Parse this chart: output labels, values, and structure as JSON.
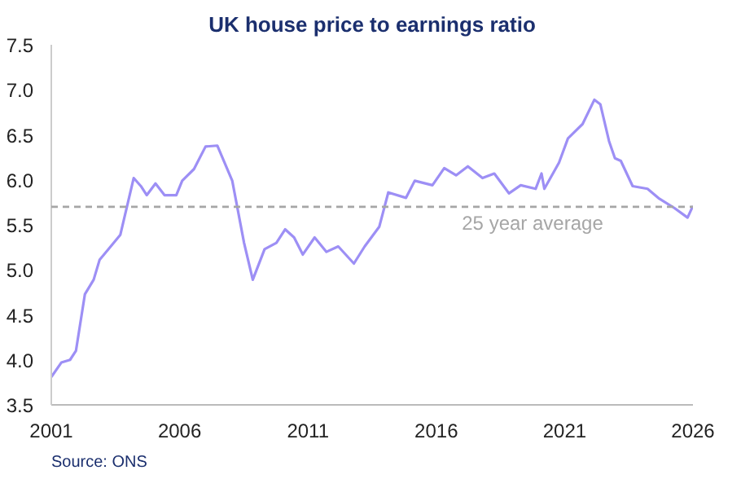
{
  "chart_data": {
    "type": "line",
    "title": "UK house price to earnings ratio",
    "x": [
      2001.0,
      2001.39,
      2001.73,
      2001.96,
      2002.31,
      2002.65,
      2002.88,
      2003.23,
      2003.69,
      2004.21,
      2004.49,
      2004.72,
      2005.06,
      2005.41,
      2005.87,
      2006.1,
      2006.56,
      2007.01,
      2007.47,
      2008.05,
      2008.51,
      2008.85,
      2009.31,
      2009.77,
      2010.11,
      2010.46,
      2010.8,
      2011.26,
      2011.72,
      2012.18,
      2012.79,
      2013.21,
      2013.78,
      2014.13,
      2014.82,
      2015.16,
      2015.85,
      2016.31,
      2016.77,
      2017.23,
      2017.8,
      2018.26,
      2018.83,
      2019.29,
      2019.87,
      2020.1,
      2020.21,
      2020.78,
      2021.13,
      2021.7,
      2022.16,
      2022.39,
      2022.73,
      2022.96,
      2023.19,
      2023.65,
      2024.23,
      2024.69,
      2025.26,
      2025.79,
      2026.0
    ],
    "series": [
      {
        "color": "#9d8ff5",
        "values": [
          3.81,
          3.97,
          4.0,
          4.1,
          4.73,
          4.89,
          5.11,
          5.23,
          5.39,
          6.02,
          5.93,
          5.83,
          5.96,
          5.83,
          5.83,
          5.99,
          6.12,
          6.37,
          6.38,
          5.99,
          5.3,
          4.89,
          5.23,
          5.3,
          5.45,
          5.36,
          5.17,
          5.36,
          5.2,
          5.26,
          5.07,
          5.26,
          5.48,
          5.86,
          5.8,
          5.99,
          5.94,
          6.13,
          6.05,
          6.15,
          6.02,
          6.07,
          5.85,
          5.94,
          5.9,
          6.07,
          5.9,
          6.19,
          6.46,
          6.62,
          6.89,
          6.84,
          6.43,
          6.24,
          6.21,
          5.93,
          5.9,
          5.79,
          5.69,
          5.58,
          5.71
        ]
      }
    ],
    "xlim": [
      2001,
      2026
    ],
    "xticks": [
      2001,
      2006,
      2011,
      2016,
      2021,
      2026
    ],
    "ylim": [
      3.5,
      7.5
    ],
    "yticks": [
      3.5,
      {
        "value": 4,
        "label": "4.0"
      },
      4.5,
      {
        "value": 5,
        "label": "5.0"
      },
      5.5,
      {
        "value": 6,
        "label": "6.0"
      },
      6.5,
      {
        "value": 7,
        "label": "7.0"
      },
      7.5
    ],
    "ref_lines": [
      {
        "axis": "y",
        "value": 5.7,
        "label": "25 year average",
        "color": "#a6a6a6",
        "line_style": "dashed"
      }
    ],
    "grid": false,
    "annotations": [
      "Source: ONS"
    ]
  }
}
